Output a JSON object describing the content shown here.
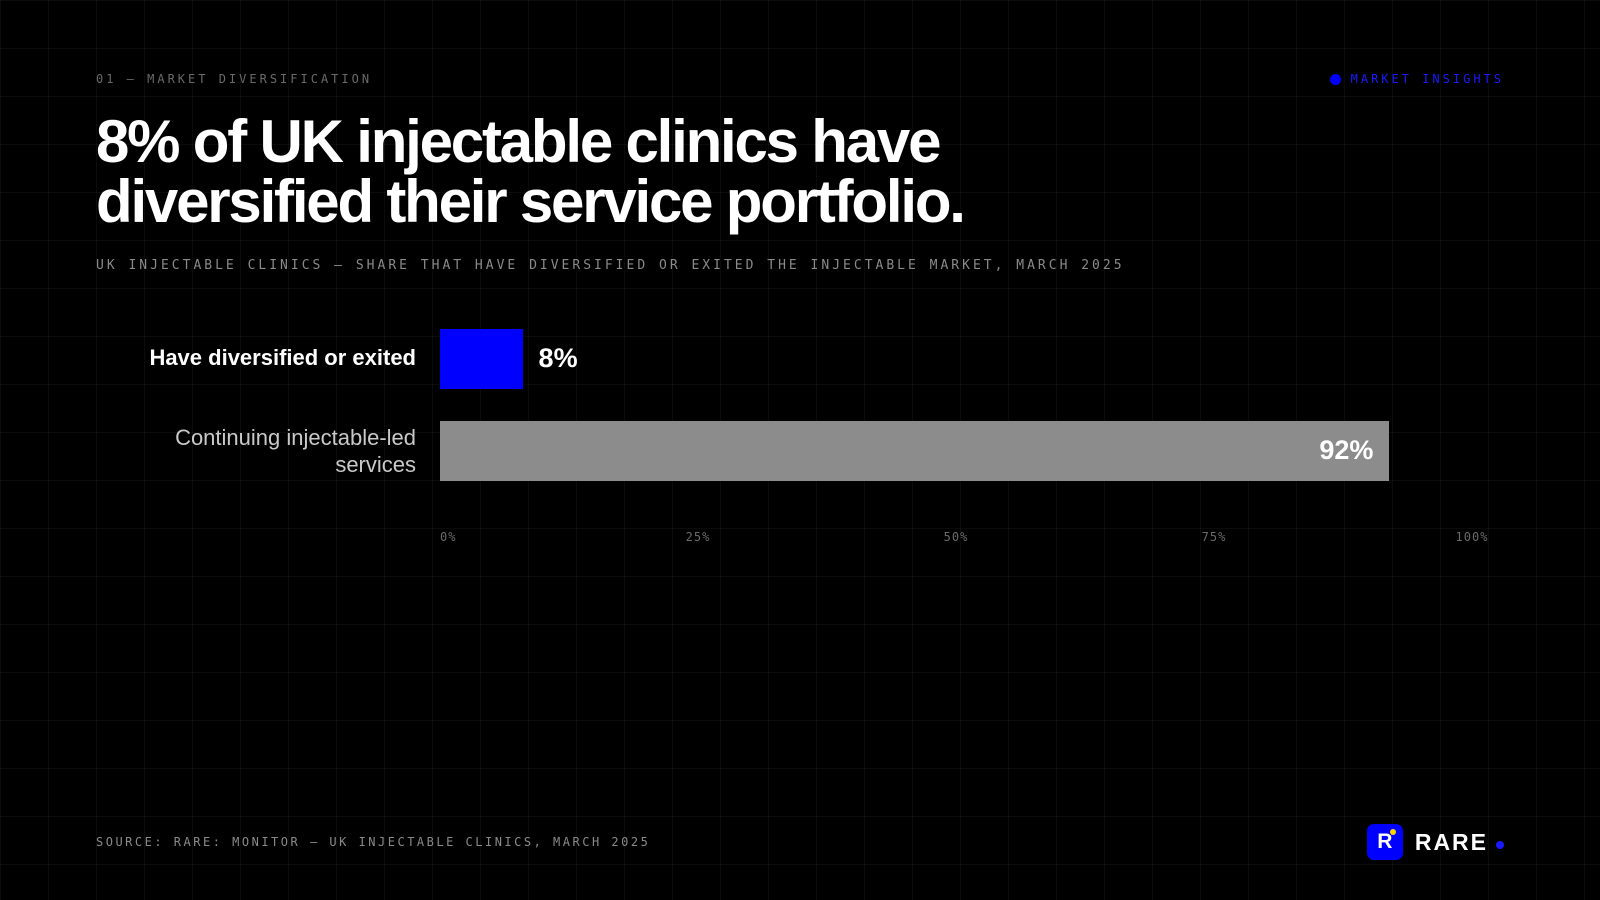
{
  "header": {
    "eyebrow": "01 — MARKET DIVERSIFICATION",
    "tag": "MARKET INSIGHTS",
    "title": "8% of UK injectable clinics have diversified their service portfolio.",
    "subtitle": "UK INJECTABLE CLINICS — SHARE THAT HAVE DIVERSIFIED OR EXITED THE INJECTABLE MARKET, MARCH 2025"
  },
  "chart_data": {
    "type": "bar",
    "orientation": "horizontal",
    "title": "8% of UK injectable clinics have diversified their service portfolio.",
    "subtitle": "UK INJECTABLE CLINICS — SHARE THAT HAVE DIVERSIFIED OR EXITED THE INJECTABLE MARKET, MARCH 2025",
    "categories": [
      "Have diversified or exited",
      "Continuing injectable-led services"
    ],
    "values": [
      8,
      92
    ],
    "value_labels": [
      "8%",
      "92%"
    ],
    "colors": [
      "#0000ff",
      "#8c8c8c"
    ],
    "xlim": [
      0,
      100
    ],
    "xticks": [
      "0%",
      "25%",
      "50%",
      "75%",
      "100%"
    ],
    "xlabel": "",
    "ylabel": "",
    "grid": true
  },
  "footer": {
    "source": "SOURCE: RARE: MONITOR — UK INJECTABLE CLINICS, MARCH 2025",
    "brand_mark": "R",
    "brand_name": "RARE"
  },
  "colors": {
    "background": "#000000",
    "accent": "#0000ff",
    "muted_bar": "#8c8c8c",
    "logo_dot": "#ffd400"
  }
}
